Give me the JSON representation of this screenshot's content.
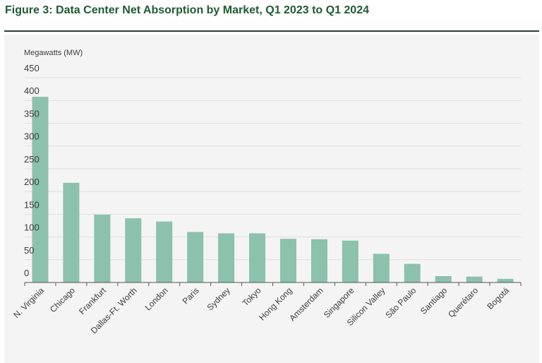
{
  "figure": {
    "title": "Figure 3: Data Center Net Absorption by Market, Q1 2023 to Q1 2024"
  },
  "colors": {
    "bar": "#8bc1ad",
    "title": "#1f5a34",
    "grid": "#dddddd",
    "axis": "#555555",
    "panel": "#f4f4f4"
  },
  "chart_data": {
    "type": "bar",
    "title": "Figure 3: Data Center Net Absorption by Market, Q1 2023 to Q1 2024",
    "xlabel": "",
    "ylabel": "Megawatts (MW)",
    "ylim": [
      0,
      450
    ],
    "yticks": [
      0,
      50,
      100,
      150,
      200,
      250,
      300,
      350,
      400,
      450
    ],
    "grid": true,
    "legend": "none",
    "categories": [
      "N. Virginia",
      "Chicago",
      "Frankfurt",
      "Dallas-Ft. Worth",
      "London",
      "Paris",
      "Sydney",
      "Tokyo",
      "Hong Kong",
      "Amsterdam",
      "Singapore",
      "Silicon Valley",
      "São Paulo",
      "Santiago",
      "Querétaro",
      "Bogotá"
    ],
    "values": [
      408,
      219,
      149,
      141,
      134,
      111,
      108,
      108,
      96,
      95,
      92,
      63,
      41,
      14,
      13,
      8
    ]
  }
}
